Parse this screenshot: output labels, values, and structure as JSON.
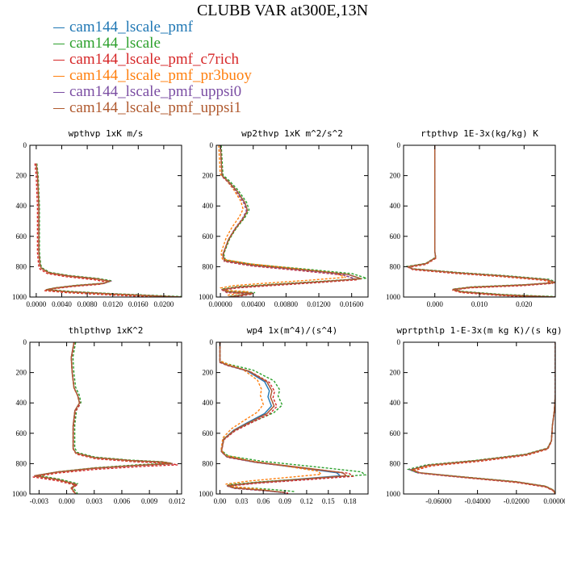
{
  "figure_title": "CLUBB VAR at300E,13N",
  "legend": [
    {
      "label": "cam144_lscale_pmf",
      "color": "#1f77b4"
    },
    {
      "label": "cam144_lscale",
      "color": "#2ca02c"
    },
    {
      "label": "cam144_lscale_pmf_c7rich",
      "color": "#d62728"
    },
    {
      "label": "cam144_lscale_pmf_pr3buoy",
      "color": "#ff7f0e"
    },
    {
      "label": "cam144_lscale_pmf_uppsi0",
      "color": "#7b4ea3"
    },
    {
      "label": "cam144_lscale_pmf_uppsi1",
      "color": "#b05a2f"
    }
  ],
  "chart_data": [
    {
      "type": "line",
      "title": "wpthvp   1xK m/s",
      "xlim": [
        -0.001,
        0.0228
      ],
      "ylim": [
        1000,
        0
      ],
      "xticks": [
        "0.0000",
        "0.0040",
        "0.0080",
        "0.0120",
        "0.0160",
        "0.0200"
      ],
      "xtick_values": [
        0,
        0.004,
        0.008,
        0.012,
        0.016,
        0.02
      ],
      "yticks": [
        "0",
        "200",
        "400",
        "600",
        "800",
        "1000"
      ],
      "ytick_values": [
        0,
        200,
        400,
        600,
        800,
        1000
      ],
      "base": {
        "x": [
          0,
          0.0002,
          0.0003,
          0.0004,
          0.0004,
          0.0004,
          0.0004,
          0.0005,
          0.0006,
          0.0008,
          0.002,
          0.005,
          0.0095,
          0.0115,
          0.0105,
          0.006,
          0.003,
          0.0015,
          0.005,
          0.012,
          0.02,
          0.0228
        ],
        "y": [
          120,
          200,
          300,
          400,
          500,
          600,
          700,
          750,
          790,
          810,
          840,
          860,
          880,
          895,
          910,
          925,
          940,
          952,
          965,
          980,
          995,
          1000
        ]
      },
      "series": [
        {
          "name": "cam144_lscale_pmf",
          "color": "#1f77b4",
          "dash": false,
          "xscale": 1.0,
          "yshift": 0,
          "xoff": 0
        },
        {
          "name": "cam144_lscale",
          "color": "#2ca02c",
          "dash": true,
          "xscale": 1.02,
          "yshift": -2,
          "xoff": 0.0001
        },
        {
          "name": "cam144_lscale_pmf_c7rich",
          "color": "#d62728",
          "dash": true,
          "xscale": 0.98,
          "yshift": 6,
          "xoff": -0.0002
        },
        {
          "name": "cam144_lscale_pmf_pr3buoy",
          "color": "#ff7f0e",
          "dash": true,
          "xscale": 0.99,
          "yshift": 2,
          "xoff": 0
        },
        {
          "name": "cam144_lscale_pmf_uppsi0",
          "color": "#7b4ea3",
          "dash": true,
          "xscale": 1.01,
          "yshift": 1,
          "xoff": 0
        },
        {
          "name": "cam144_lscale_pmf_uppsi1",
          "color": "#b05a2f",
          "dash": false,
          "xscale": 1.0,
          "yshift": 0,
          "xoff": 0
        }
      ]
    },
    {
      "type": "line",
      "title": "wp2thvp   1xK m^2/s^2",
      "xlim": [
        -0.0005,
        0.018
      ],
      "ylim": [
        1000,
        0
      ],
      "xticks": [
        "0.00000",
        "0.00400",
        "0.00800",
        "0.01200",
        "0.01600"
      ],
      "xtick_values": [
        0,
        0.004,
        0.008,
        0.012,
        0.016
      ],
      "yticks": [
        "0",
        "200",
        "400",
        "600",
        "800",
        "1000"
      ],
      "ytick_values": [
        0,
        200,
        400,
        600,
        800,
        1000
      ],
      "base": {
        "x": [
          0,
          0.0002,
          0.001,
          0.002,
          0.003,
          0.0033,
          0.0028,
          0.0018,
          0.001,
          0.0003,
          0.0005,
          0.004,
          0.01,
          0.0155,
          0.0172,
          0.012,
          0.006,
          0.002,
          0.0003,
          0.0008,
          0.004,
          0.001
        ],
        "y": [
          0,
          200,
          240,
          300,
          380,
          430,
          480,
          550,
          620,
          720,
          760,
          790,
          820,
          850,
          880,
          900,
          920,
          935,
          950,
          965,
          975,
          1000
        ]
      },
      "series": [
        {
          "name": "cam144_lscale_pmf",
          "color": "#1f77b4",
          "dash": false,
          "xscale": 1.0,
          "yshift": 0,
          "xoff": 0
        },
        {
          "name": "cam144_lscale",
          "color": "#2ca02c",
          "dash": true,
          "xscale": 1.03,
          "yshift": -4,
          "xoff": 0.0001
        },
        {
          "name": "cam144_lscale_pmf_c7rich",
          "color": "#d62728",
          "dash": true,
          "xscale": 0.97,
          "yshift": 6,
          "xoff": 0
        },
        {
          "name": "cam144_lscale_pmf_pr3buoy",
          "color": "#ff7f0e",
          "dash": true,
          "xscale": 0.9,
          "yshift": -10,
          "xoff": -0.0002
        },
        {
          "name": "cam144_lscale_pmf_uppsi0",
          "color": "#7b4ea3",
          "dash": true,
          "xscale": 0.96,
          "yshift": 2,
          "xoff": 0
        },
        {
          "name": "cam144_lscale_pmf_uppsi1",
          "color": "#b05a2f",
          "dash": false,
          "xscale": 1.0,
          "yshift": 0,
          "xoff": 0
        }
      ]
    },
    {
      "type": "line",
      "title": "rtpthvp   1E-3x(kg/kg) K",
      "xlim": [
        -0.007,
        0.027
      ],
      "ylim": [
        1000,
        0
      ],
      "xticks": [
        "0.000",
        "0.010",
        "0.020"
      ],
      "xtick_values": [
        0,
        0.01,
        0.02
      ],
      "yticks": [
        "0",
        "200",
        "400",
        "600",
        "800",
        "1000"
      ],
      "ytick_values": [
        0,
        200,
        400,
        600,
        800,
        1000
      ],
      "base": {
        "x": [
          0,
          0,
          0,
          0,
          0,
          0.0002,
          -0.002,
          -0.006,
          -0.005,
          0.005,
          0.015,
          0.025,
          0.027,
          0.02,
          0.008,
          0.004,
          0.006,
          0.015,
          0.027
        ],
        "y": [
          0,
          200,
          400,
          600,
          700,
          740,
          780,
          800,
          815,
          840,
          860,
          885,
          905,
          920,
          935,
          950,
          965,
          985,
          1000
        ]
      },
      "series": [
        {
          "name": "cam144_lscale_pmf",
          "color": "#1f77b4",
          "dash": false,
          "xscale": 1.0,
          "yshift": 0,
          "xoff": 0
        },
        {
          "name": "cam144_lscale",
          "color": "#2ca02c",
          "dash": true,
          "xscale": 1.02,
          "yshift": -2,
          "xoff": 0
        },
        {
          "name": "cam144_lscale_pmf_c7rich",
          "color": "#d62728",
          "dash": true,
          "xscale": 0.98,
          "yshift": 5,
          "xoff": 0
        },
        {
          "name": "cam144_lscale_pmf_pr3buoy",
          "color": "#ff7f0e",
          "dash": true,
          "xscale": 0.99,
          "yshift": 2,
          "xoff": 0
        },
        {
          "name": "cam144_lscale_pmf_uppsi0",
          "color": "#7b4ea3",
          "dash": true,
          "xscale": 1.01,
          "yshift": 1,
          "xoff": 0
        },
        {
          "name": "cam144_lscale_pmf_uppsi1",
          "color": "#b05a2f",
          "dash": false,
          "xscale": 1.0,
          "yshift": 0,
          "xoff": 0
        }
      ]
    },
    {
      "type": "line",
      "title": "thlpthvp   1xK^2",
      "xlim": [
        -0.004,
        0.0125
      ],
      "ylim": [
        1000,
        0
      ],
      "xticks": [
        "-0.003",
        "0.000",
        "0.003",
        "0.006",
        "0.009",
        "0.012"
      ],
      "xtick_values": [
        -0.003,
        0,
        0.003,
        0.006,
        0.009,
        0.012
      ],
      "yticks": [
        "0",
        "200",
        "400",
        "600",
        "800",
        "1000"
      ],
      "ytick_values": [
        0,
        200,
        400,
        600,
        800,
        1000
      ],
      "base": {
        "x": [
          0.0008,
          0.0005,
          0.0006,
          0.0008,
          0.0012,
          0.0014,
          0.0009,
          0.0007,
          0.0007,
          0.001,
          0.003,
          0.007,
          0.0105,
          0.0115,
          0.008,
          0.003,
          -0.001,
          -0.0035,
          -0.001,
          0.001,
          0.0005,
          0.001
        ],
        "y": [
          0,
          100,
          200,
          300,
          350,
          400,
          450,
          550,
          700,
          730,
          760,
          780,
          790,
          800,
          810,
          830,
          855,
          880,
          905,
          935,
          960,
          1000
        ]
      },
      "series": [
        {
          "name": "cam144_lscale_pmf",
          "color": "#1f77b4",
          "dash": false,
          "xscale": 1.0,
          "yshift": 0,
          "xoff": 0
        },
        {
          "name": "cam144_lscale",
          "color": "#2ca02c",
          "dash": true,
          "xscale": 0.97,
          "yshift": -3,
          "xoff": 0.0002
        },
        {
          "name": "cam144_lscale_pmf_c7rich",
          "color": "#d62728",
          "dash": true,
          "xscale": 1.05,
          "yshift": 8,
          "xoff": 0
        },
        {
          "name": "cam144_lscale_pmf_pr3buoy",
          "color": "#ff7f0e",
          "dash": true,
          "xscale": 0.99,
          "yshift": 2,
          "xoff": 0
        },
        {
          "name": "cam144_lscale_pmf_uppsi0",
          "color": "#7b4ea3",
          "dash": true,
          "xscale": 1.01,
          "yshift": 1,
          "xoff": 0
        },
        {
          "name": "cam144_lscale_pmf_uppsi1",
          "color": "#b05a2f",
          "dash": false,
          "xscale": 1.0,
          "yshift": 0,
          "xoff": 0
        }
      ]
    },
    {
      "type": "line",
      "title": "wp4   1x(m^4)/(s^4)",
      "xlim": [
        -0.005,
        0.205
      ],
      "ylim": [
        1000,
        0
      ],
      "xticks": [
        "0.00",
        "0.03",
        "0.06",
        "0.09",
        "0.12",
        "0.15",
        "0.18"
      ],
      "xtick_values": [
        0,
        0.03,
        0.06,
        0.09,
        0.12,
        0.15,
        0.18
      ],
      "yticks": [
        "0",
        "200",
        "400",
        "600",
        "800",
        "1000"
      ],
      "ytick_values": [
        0,
        200,
        400,
        600,
        800,
        1000
      ],
      "base": {
        "x": [
          0,
          0,
          0.01,
          0.04,
          0.065,
          0.072,
          0.07,
          0.075,
          0.065,
          0.04,
          0.02,
          0.005,
          0.002,
          0.01,
          0.05,
          0.12,
          0.17,
          0.175,
          0.12,
          0.05,
          0.01,
          0.02,
          0.06,
          0.09
        ],
        "y": [
          0,
          130,
          150,
          190,
          260,
          320,
          360,
          420,
          470,
          530,
          580,
          640,
          720,
          755,
          790,
          830,
          860,
          880,
          900,
          925,
          945,
          960,
          975,
          990
        ]
      },
      "series": [
        {
          "name": "cam144_lscale_pmf",
          "color": "#1f77b4",
          "dash": false,
          "xscale": 0.95,
          "yshift": 0,
          "xoff": 0
        },
        {
          "name": "cam144_lscale",
          "color": "#2ca02c",
          "dash": true,
          "xscale": 1.15,
          "yshift": -6,
          "xoff": 0
        },
        {
          "name": "cam144_lscale_pmf_c7rich",
          "color": "#d62728",
          "dash": true,
          "xscale": 1.05,
          "yshift": 4,
          "xoff": 0
        },
        {
          "name": "cam144_lscale_pmf_pr3buoy",
          "color": "#ff7f0e",
          "dash": true,
          "xscale": 0.8,
          "yshift": -10,
          "xoff": 0
        },
        {
          "name": "cam144_lscale_pmf_uppsi0",
          "color": "#7b4ea3",
          "dash": true,
          "xscale": 1.0,
          "yshift": 2,
          "xoff": 0
        },
        {
          "name": "cam144_lscale_pmf_uppsi1",
          "color": "#b05a2f",
          "dash": false,
          "xscale": 1.0,
          "yshift": 0,
          "xoff": 0
        }
      ]
    },
    {
      "type": "line",
      "title": "wprtpthlp   1-E-3x(m kg K)/(s kg)",
      "xlim": [
        -0.078,
        0
      ],
      "ylim": [
        1000,
        0
      ],
      "xticks": [
        "-0.06000",
        "-0.04000",
        "-0.02000",
        "0.00000"
      ],
      "xtick_values": [
        -0.06,
        -0.04,
        -0.02,
        0
      ],
      "yticks": [
        "0",
        "200",
        "400",
        "600",
        "800",
        "1000"
      ],
      "ytick_values": [
        0,
        200,
        400,
        600,
        800,
        1000
      ],
      "base": {
        "x": [
          0,
          0,
          -0.0005,
          -0.0015,
          -0.002,
          -0.004,
          -0.015,
          -0.04,
          -0.065,
          -0.074,
          -0.07,
          -0.05,
          -0.02,
          -0.005,
          -0.001,
          0
        ],
        "y": [
          0,
          350,
          450,
          550,
          650,
          700,
          740,
          780,
          810,
          840,
          860,
          885,
          920,
          950,
          975,
          1000
        ]
      },
      "series": [
        {
          "name": "cam144_lscale_pmf",
          "color": "#1f77b4",
          "dash": false,
          "xscale": 1.0,
          "yshift": 0,
          "xoff": 0
        },
        {
          "name": "cam144_lscale",
          "color": "#2ca02c",
          "dash": true,
          "xscale": 1.02,
          "yshift": -2,
          "xoff": 0
        },
        {
          "name": "cam144_lscale_pmf_c7rich",
          "color": "#d62728",
          "dash": true,
          "xscale": 0.98,
          "yshift": 5,
          "xoff": 0
        },
        {
          "name": "cam144_lscale_pmf_pr3buoy",
          "color": "#ff7f0e",
          "dash": true,
          "xscale": 0.99,
          "yshift": 2,
          "xoff": 0
        },
        {
          "name": "cam144_lscale_pmf_uppsi0",
          "color": "#7b4ea3",
          "dash": true,
          "xscale": 1.01,
          "yshift": 1,
          "xoff": 0
        },
        {
          "name": "cam144_lscale_pmf_uppsi1",
          "color": "#b05a2f",
          "dash": false,
          "xscale": 1.0,
          "yshift": 0,
          "xoff": 0
        }
      ]
    }
  ]
}
